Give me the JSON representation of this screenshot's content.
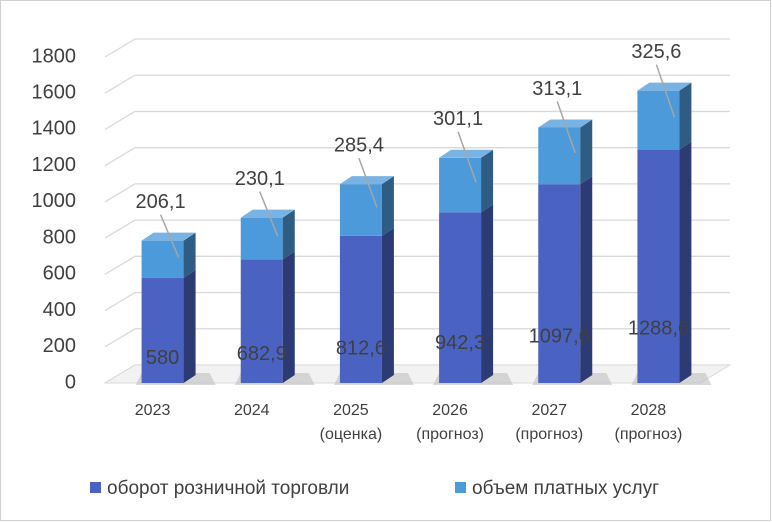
{
  "chart_data": {
    "type": "bar3d_stacked",
    "categories": [
      [
        "2023"
      ],
      [
        "2024"
      ],
      [
        "2025",
        "(оценка)"
      ],
      [
        "2026",
        "(прогноз)"
      ],
      [
        "2027",
        "(прогноз)"
      ],
      [
        "2028",
        "(прогноз)"
      ]
    ],
    "series": [
      {
        "name": "оборот розничной торговли",
        "color": "#4a62c2",
        "values": [
          580,
          682.9,
          812.6,
          942.3,
          1097.6,
          1288.6
        ],
        "value_labels": [
          "580",
          "682,9",
          "812,6",
          "942,3",
          "1097,6",
          "1288,6"
        ]
      },
      {
        "name": "объем платных услуг",
        "color": "#4c9ad9",
        "values": [
          206.1,
          230.1,
          285.4,
          301.1,
          313.1,
          325.6
        ],
        "value_labels": [
          "206,1",
          "230,1",
          "285,4",
          "301,1",
          "313,1",
          "325,6"
        ]
      }
    ],
    "ylim": [
      0,
      1800
    ],
    "yticks": [
      0,
      200,
      400,
      600,
      800,
      1000,
      1200,
      1400,
      1600,
      1800
    ],
    "grid": true,
    "legend": "bottom"
  }
}
